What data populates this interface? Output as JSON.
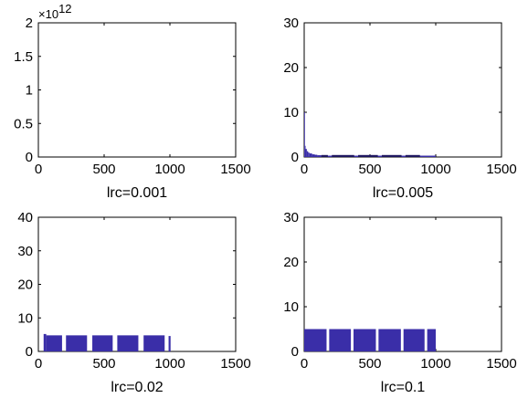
{
  "chart_data": [
    {
      "type": "bar",
      "title": "",
      "xlabel": "lrc=0.001",
      "ylabel": "",
      "xlim": [
        0,
        1500
      ],
      "ylim": [
        0,
        2
      ],
      "xticks": [
        "0",
        "500",
        "1000",
        "1500"
      ],
      "yticks": [
        "0",
        "0.5",
        "1",
        "1.5",
        "2"
      ],
      "y_exponent_label": "×10",
      "y_exponent_power": "12",
      "color": "#3a2ea8",
      "bars": []
    },
    {
      "type": "bar",
      "title": "",
      "xlabel": "lrc=0.005",
      "ylabel": "",
      "xlim": [
        0,
        1500
      ],
      "ylim": [
        0,
        30
      ],
      "xticks": [
        "0",
        "500",
        "1000",
        "1500"
      ],
      "yticks": [
        "0",
        "10",
        "20",
        "30"
      ],
      "color": "#3a2ea8",
      "decay": {
        "x": [
          0,
          5,
          10,
          20,
          30,
          40,
          60,
          80,
          100,
          130
        ],
        "y": [
          10,
          2.5,
          1.8,
          1.3,
          1.0,
          0.8,
          0.6,
          0.5,
          0.4,
          0.35
        ]
      },
      "bars": [
        {
          "x0": 130,
          "x1": 1000,
          "value": 0.3
        }
      ],
      "dark_blocks": [
        [
          130,
          180
        ],
        [
          210,
          380
        ],
        [
          410,
          560
        ],
        [
          590,
          740
        ],
        [
          770,
          880
        ]
      ]
    },
    {
      "type": "bar",
      "title": "",
      "xlabel": "lrc=0.02",
      "ylabel": "",
      "xlim": [
        0,
        1500
      ],
      "ylim": [
        0,
        40
      ],
      "xticks": [
        "0",
        "500",
        "1000",
        "1500"
      ],
      "yticks": [
        "0",
        "10",
        "20",
        "30",
        "40"
      ],
      "color": "#3a2ea8",
      "bars": [
        {
          "x0": 40,
          "x1": 60,
          "value": 5.2
        },
        {
          "x0": 60,
          "x1": 180,
          "value": 4.8
        },
        {
          "x0": 210,
          "x1": 370,
          "value": 4.8
        },
        {
          "x0": 410,
          "x1": 565,
          "value": 4.8
        },
        {
          "x0": 600,
          "x1": 760,
          "value": 4.8
        },
        {
          "x0": 800,
          "x1": 960,
          "value": 4.8
        },
        {
          "x0": 990,
          "x1": 1005,
          "value": 4.6
        }
      ]
    },
    {
      "type": "bar",
      "title": "",
      "xlabel": "lrc=0.1",
      "ylabel": "",
      "xlim": [
        0,
        1500
      ],
      "ylim": [
        0,
        30
      ],
      "xticks": [
        "0",
        "500",
        "1000",
        "1500"
      ],
      "yticks": [
        "0",
        "10",
        "20",
        "30"
      ],
      "color": "#3a2ea8",
      "bars": [
        {
          "x0": 0,
          "x1": 170,
          "value": 5.0
        },
        {
          "x0": 190,
          "x1": 355,
          "value": 5.0
        },
        {
          "x0": 375,
          "x1": 545,
          "value": 5.0
        },
        {
          "x0": 565,
          "x1": 735,
          "value": 5.0
        },
        {
          "x0": 755,
          "x1": 915,
          "value": 5.0
        },
        {
          "x0": 935,
          "x1": 1000,
          "value": 5.0
        }
      ]
    }
  ]
}
